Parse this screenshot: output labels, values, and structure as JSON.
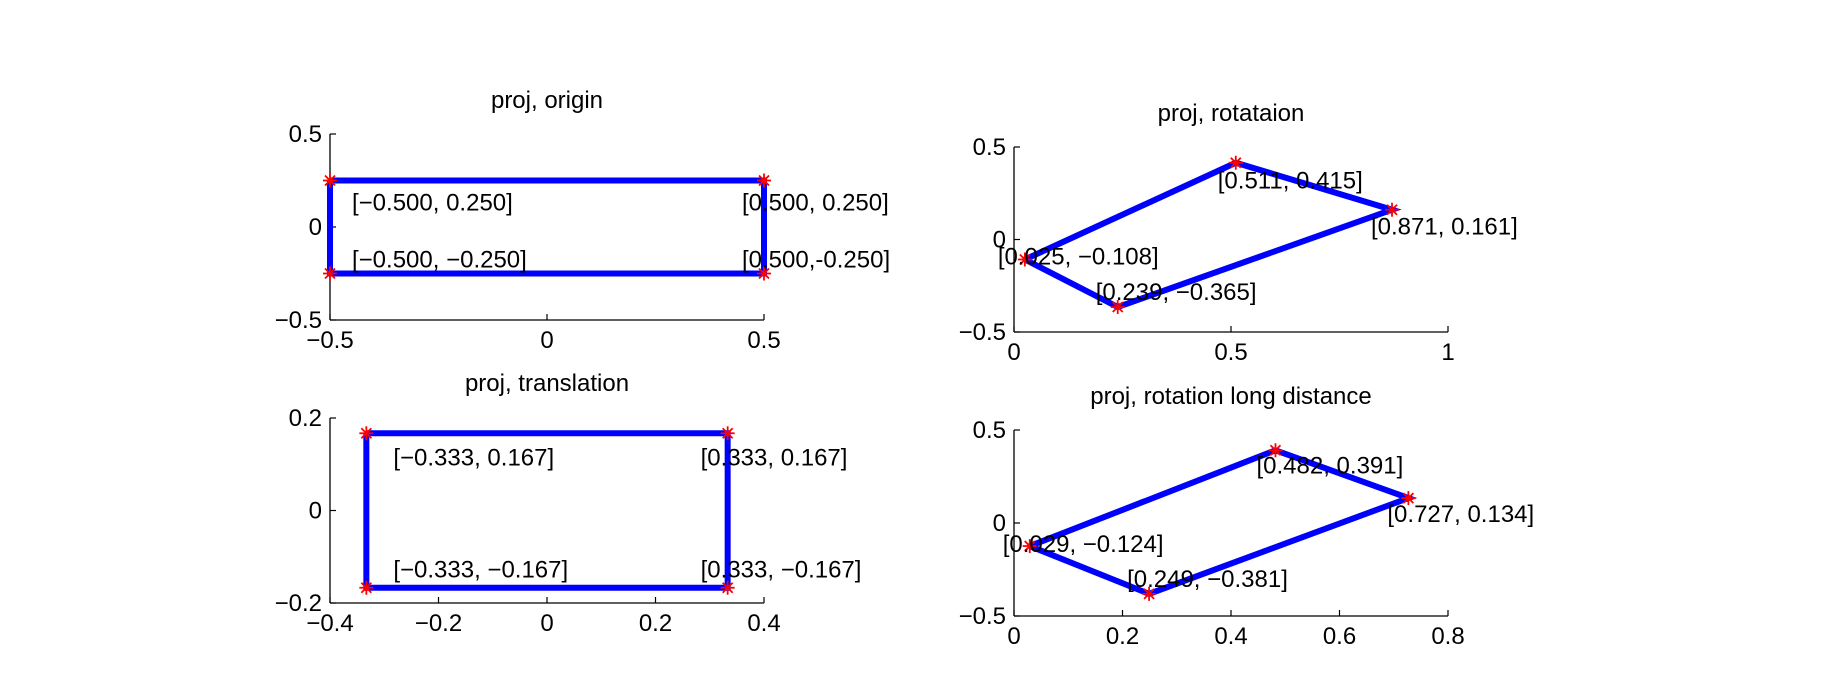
{
  "chart_data": [
    {
      "type": "line",
      "title": "proj, origin",
      "xlim": [
        -0.5,
        0.5
      ],
      "ylim": [
        -0.5,
        0.5
      ],
      "xticks": [
        -0.5,
        0,
        0.5
      ],
      "yticks": [
        -0.5,
        0,
        0.5
      ],
      "xtick_labels": [
        "−0.5",
        "0",
        "0.5"
      ],
      "ytick_labels": [
        "−0.5",
        "0",
        "0.5"
      ],
      "grid": false,
      "polygon_color": "#0000ff",
      "marker_color": "#ff0000",
      "points": [
        {
          "x": -0.5,
          "y": 0.25,
          "label": "[−0.500, 0.250]"
        },
        {
          "x": 0.5,
          "y": 0.25,
          "label": "[0.500, 0.250]"
        },
        {
          "x": 0.5,
          "y": -0.25,
          "label": "[0.500,-0.250]"
        },
        {
          "x": -0.5,
          "y": -0.25,
          "label": "[−0.500, −0.250]"
        }
      ]
    },
    {
      "type": "line",
      "title": "proj, rotataion",
      "xlim": [
        0,
        1
      ],
      "ylim": [
        -0.5,
        0.5
      ],
      "xticks": [
        0,
        0.5,
        1
      ],
      "yticks": [
        -0.5,
        0,
        0.5
      ],
      "xtick_labels": [
        "0",
        "0.5",
        "1"
      ],
      "ytick_labels": [
        "−0.5",
        "0",
        "0.5"
      ],
      "grid": false,
      "polygon_color": "#0000ff",
      "marker_color": "#ff0000",
      "points": [
        {
          "x": 0.025,
          "y": -0.108,
          "label": "[0.025, −0.108]"
        },
        {
          "x": 0.511,
          "y": 0.415,
          "label": "[0.511, 0.415]"
        },
        {
          "x": 0.871,
          "y": 0.161,
          "label": "[0.871, 0.161]"
        },
        {
          "x": 0.239,
          "y": -0.365,
          "label": "[0.239, −0.365]"
        }
      ]
    },
    {
      "type": "line",
      "title": "proj, translation",
      "xlim": [
        -0.4,
        0.4
      ],
      "ylim": [
        -0.2,
        0.2
      ],
      "xticks": [
        -0.4,
        -0.2,
        0,
        0.2,
        0.4
      ],
      "yticks": [
        -0.2,
        0,
        0.2
      ],
      "xtick_labels": [
        "−0.4",
        "−0.2",
        "0",
        "0.2",
        "0.4"
      ],
      "ytick_labels": [
        "−0.2",
        "0",
        "0.2"
      ],
      "grid": false,
      "polygon_color": "#0000ff",
      "marker_color": "#ff0000",
      "points": [
        {
          "x": -0.333,
          "y": 0.167,
          "label": "[−0.333, 0.167]"
        },
        {
          "x": 0.333,
          "y": 0.167,
          "label": "[0.333, 0.167]"
        },
        {
          "x": 0.333,
          "y": -0.167,
          "label": "[0.333, −0.167]"
        },
        {
          "x": -0.333,
          "y": -0.167,
          "label": "[−0.333, −0.167]"
        }
      ]
    },
    {
      "type": "line",
      "title": "proj, rotation long distance",
      "xlim": [
        0,
        0.8
      ],
      "ylim": [
        -0.5,
        0.5
      ],
      "xticks": [
        0,
        0.2,
        0.4,
        0.6,
        0.8
      ],
      "yticks": [
        -0.5,
        0,
        0.5
      ],
      "xtick_labels": [
        "0",
        "0.2",
        "0.4",
        "0.6",
        "0.8"
      ],
      "ytick_labels": [
        "−0.5",
        "0",
        "0.5"
      ],
      "grid": false,
      "polygon_color": "#0000ff",
      "marker_color": "#ff0000",
      "points": [
        {
          "x": 0.029,
          "y": -0.124,
          "label": "[0.029, −0.124]"
        },
        {
          "x": 0.482,
          "y": 0.391,
          "label": "[0.482, 0.391]"
        },
        {
          "x": 0.727,
          "y": 0.134,
          "label": "[0.727, 0.134]"
        },
        {
          "x": 0.249,
          "y": -0.381,
          "label": "[0.249, −0.381]"
        }
      ]
    }
  ]
}
